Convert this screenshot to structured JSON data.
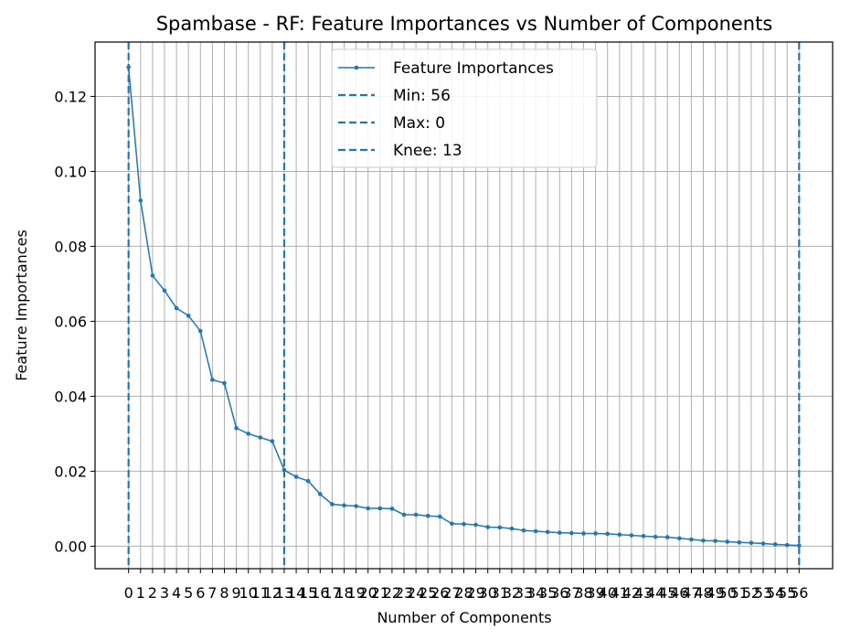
{
  "chart_data": {
    "type": "line",
    "title": "Spambase - RF: Feature Importances vs Number of Components",
    "xlabel": "Number of Components",
    "ylabel": "Feature Importances",
    "xlim": [
      -2.8,
      58.8
    ],
    "ylim": [
      -0.006,
      0.1345
    ],
    "xticks": [
      0,
      1,
      2,
      3,
      4,
      5,
      6,
      7,
      8,
      9,
      10,
      11,
      12,
      13,
      14,
      15,
      16,
      17,
      18,
      19,
      20,
      21,
      22,
      23,
      24,
      25,
      26,
      27,
      28,
      29,
      30,
      31,
      32,
      33,
      34,
      35,
      36,
      37,
      38,
      39,
      40,
      41,
      42,
      43,
      44,
      45,
      46,
      47,
      48,
      49,
      50,
      51,
      52,
      53,
      54,
      55,
      56
    ],
    "yticks": [
      "0.00",
      "0.02",
      "0.04",
      "0.06",
      "0.08",
      "0.10",
      "0.12"
    ],
    "ytick_values": [
      0,
      0.02,
      0.04,
      0.06,
      0.08,
      0.1,
      0.12
    ],
    "grid": true,
    "series": [
      {
        "name": "Feature Importances",
        "color": "#1f77b4",
        "x": [
          0,
          1,
          2,
          3,
          4,
          5,
          6,
          7,
          8,
          9,
          10,
          11,
          12,
          13,
          14,
          15,
          16,
          17,
          18,
          19,
          20,
          21,
          22,
          23,
          24,
          25,
          26,
          27,
          28,
          29,
          30,
          31,
          32,
          33,
          34,
          35,
          36,
          37,
          38,
          39,
          40,
          41,
          42,
          43,
          44,
          45,
          46,
          47,
          48,
          49,
          50,
          51,
          52,
          53,
          54,
          55,
          56
        ],
        "values": [
          0.1278,
          0.0922,
          0.0722,
          0.0682,
          0.0635,
          0.0615,
          0.0574,
          0.0444,
          0.0435,
          0.0315,
          0.03,
          0.029,
          0.028,
          0.0203,
          0.0185,
          0.0174,
          0.0139,
          0.0112,
          0.0109,
          0.0107,
          0.0101,
          0.0101,
          0.01,
          0.0084,
          0.0084,
          0.0081,
          0.0079,
          0.006,
          0.0059,
          0.0057,
          0.0051,
          0.005,
          0.0047,
          0.0042,
          0.004,
          0.0038,
          0.0036,
          0.0035,
          0.0034,
          0.0034,
          0.0033,
          0.0031,
          0.0029,
          0.0027,
          0.0025,
          0.0024,
          0.0021,
          0.0018,
          0.0015,
          0.0014,
          0.0012,
          0.001,
          0.0009,
          0.0007,
          0.0005,
          0.0003,
          0.0002
        ]
      }
    ],
    "vlines": [
      {
        "name": "Min: 56",
        "x": 56,
        "color": "#1f77b4",
        "style": "dashed"
      },
      {
        "name": "Max: 0",
        "x": 0,
        "color": "#1f77b4",
        "style": "dashed"
      },
      {
        "name": "Knee: 13",
        "x": 13,
        "color": "#1f77b4",
        "style": "dashed"
      }
    ],
    "legend": {
      "placement": "top-center",
      "entries": [
        "Feature Importances",
        "Min: 56",
        "Max: 0",
        "Knee: 13"
      ]
    }
  }
}
